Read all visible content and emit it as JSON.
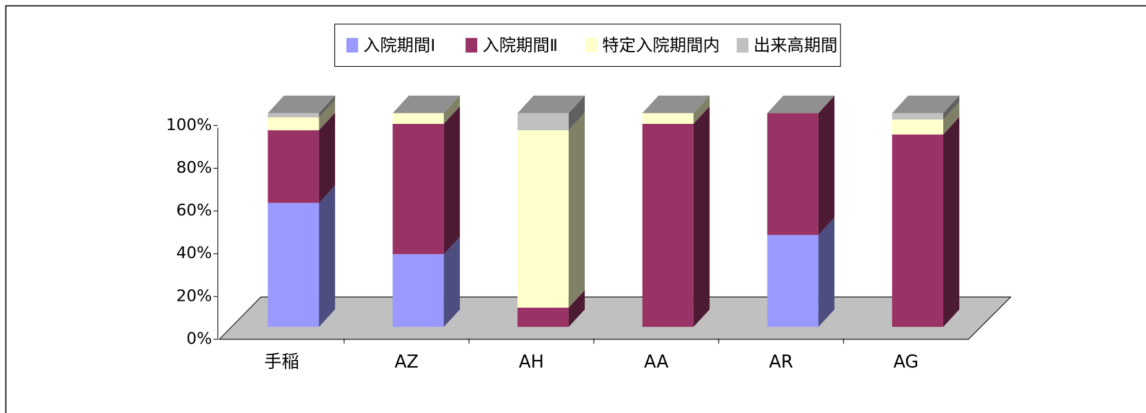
{
  "chart_data": {
    "type": "bar3d_stacked",
    "categories": [
      "手稲",
      "AZ",
      "AH",
      "AA",
      "AR",
      "AG"
    ],
    "series": [
      {
        "name": "入院期間Ⅰ",
        "color": "#9999ff",
        "side": "#4d4d80",
        "values": [
          58,
          34,
          0,
          0,
          43,
          0
        ]
      },
      {
        "name": "入院期間Ⅱ",
        "color": "#993366",
        "side": "#4d1a33",
        "values": [
          34,
          61,
          9,
          95,
          57,
          90
        ]
      },
      {
        "name": "特定入院期間内",
        "color": "#ffffcc",
        "side": "#808066",
        "values": [
          6,
          5,
          83,
          5,
          0,
          7
        ]
      },
      {
        "name": "出来高期間",
        "color": "#c0c0c0",
        "side": "#606060",
        "values": [
          2,
          0,
          8,
          0,
          0,
          3
        ]
      }
    ],
    "ylim": [
      0,
      100
    ],
    "yticks": [
      {
        "value": 0,
        "label": "0%"
      },
      {
        "value": 20,
        "label": "20%"
      },
      {
        "value": 40,
        "label": "40%"
      },
      {
        "value": 60,
        "label": "60%"
      },
      {
        "value": 80,
        "label": "80%"
      },
      {
        "value": 100,
        "label": "100%"
      }
    ],
    "legend": "top"
  }
}
